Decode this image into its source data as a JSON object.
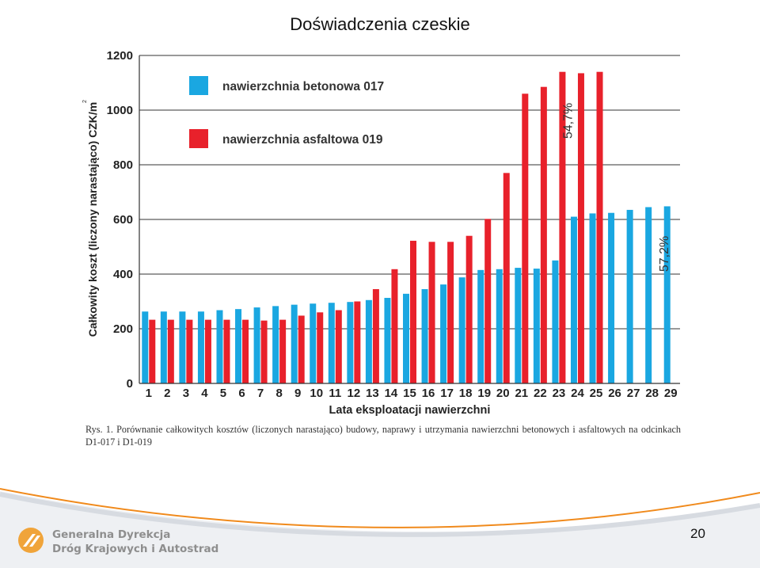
{
  "slide": {
    "title": "Doświadczenia czeskie",
    "page_number": "20"
  },
  "figure": {
    "caption": "Rys. 1. Porównanie całkowitych kosztów (liczonych narastająco) budowy, naprawy i utrzymania nawierzchni betonowych i asfaltowych na odcinkach D1-017 i D1-019"
  },
  "logo": {
    "line1": "Generalna Dyrekcja",
    "line2": "Dróg Krajowych i Autostrad",
    "color": "#f0a43a"
  },
  "colors": {
    "concrete": "#1aa7e1",
    "asphalt": "#e8212b",
    "footer_orange": "#f08a1c"
  },
  "chart_data": {
    "type": "bar",
    "xlabel": "Lata eksploatacji nawierzchni",
    "ylabel": "Całkowity koszt (liczony narastająco) CZK/m",
    "ylabel_superscript": "2",
    "ylim": [
      0,
      1200
    ],
    "yticks": [
      "0",
      "200",
      "400",
      "600",
      "800",
      "1000",
      "1200"
    ],
    "grid": true,
    "legend_position": "top-left",
    "categories": [
      "1",
      "2",
      "3",
      "4",
      "5",
      "6",
      "7",
      "8",
      "9",
      "10",
      "11",
      "12",
      "13",
      "14",
      "15",
      "16",
      "17",
      "18",
      "19",
      "20",
      "21",
      "22",
      "23",
      "24",
      "25",
      "26",
      "27",
      "28",
      "29"
    ],
    "series": [
      {
        "name": "nawierzchnia betonowa 017",
        "color": "#1aa7e1",
        "values": [
          263,
          263,
          263,
          263,
          268,
          272,
          278,
          283,
          288,
          292,
          295,
          298,
          305,
          313,
          328,
          345,
          362,
          388,
          415,
          418,
          423,
          420,
          450,
          610,
          622,
          624,
          635,
          645,
          648
        ]
      },
      {
        "name": "nawierzchnia asfaltowa 019",
        "color": "#e8212b",
        "values": [
          233,
          233,
          233,
          233,
          233,
          233,
          230,
          233,
          248,
          260,
          268,
          300,
          345,
          418,
          522,
          518,
          518,
          540,
          602,
          770,
          1060,
          1085,
          1140,
          1135,
          1140,
          null,
          null,
          null,
          null
        ]
      }
    ],
    "annotations": [
      {
        "text": "54,7%",
        "series": 1,
        "at_category": "24"
      },
      {
        "text": "57,2%",
        "series": 0,
        "at_category": "29"
      }
    ]
  }
}
